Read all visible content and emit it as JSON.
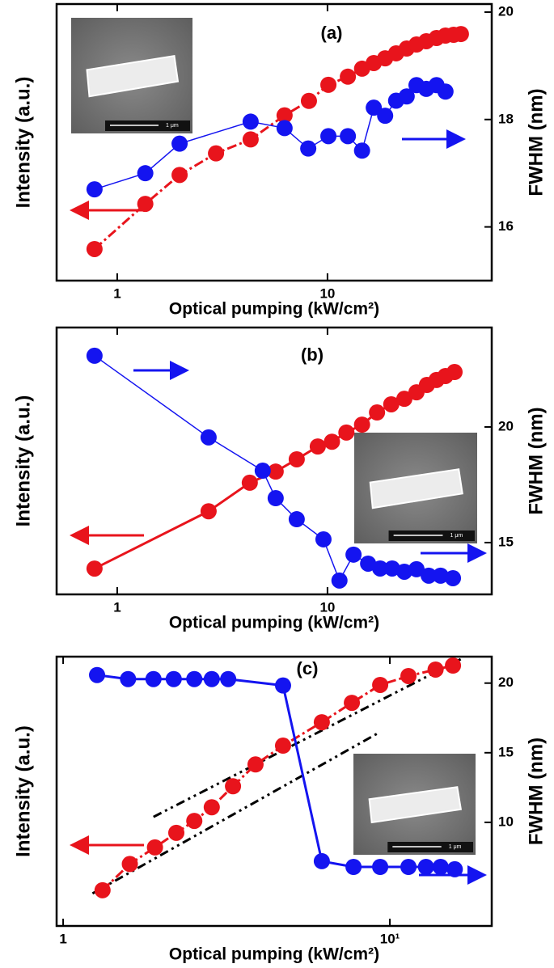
{
  "chart_data": [
    {
      "type": "line",
      "panel_label": "(a)",
      "x_label": "Optical pumping (kW/cm²)",
      "y_label": "Intensity (a.u.)",
      "y2_label": "FWHM (nm)",
      "log_x": true,
      "xlim": [
        0.515,
        60.4
      ],
      "xticks": [
        1,
        10
      ],
      "log_y": true,
      "ylim": [
        1,
        1000
      ],
      "y2lim": [
        15,
        20.15
      ],
      "y2ticks": [
        16,
        18,
        20
      ],
      "inset_scale_label": "1 μm",
      "series": [
        {
          "color": "#e8141c",
          "x": [
            0.78,
            1.36,
            1.98,
            2.95,
            4.31,
            6.25,
            8.16,
            10.1,
            12.5,
            14.6,
            16.6,
            18.8,
            21.2,
            23.8,
            26.5,
            29.5,
            33.0,
            36.4,
            39.8,
            43.1
          ],
          "values": [
            2.2,
            6.8,
            14,
            24,
            34,
            62,
            89,
            133,
            163,
            199,
            229,
            258,
            292,
            329,
            364,
            395,
            428,
            455,
            464,
            473
          ]
        },
        {
          "color": "#1414f0",
          "axis": "y2",
          "x": [
            0.78,
            1.36,
            1.98,
            4.31,
            6.25,
            8.1,
            10.1,
            12.5,
            14.6,
            16.6,
            18.8,
            21.2,
            23.8,
            26.5,
            29.5,
            33.0,
            36.4
          ],
          "values": [
            16.7,
            17.0,
            17.55,
            17.96,
            17.84,
            17.46,
            17.69,
            17.69,
            17.42,
            18.22,
            18.07,
            18.35,
            18.43,
            18.64,
            18.57,
            18.64,
            18.52
          ]
        }
      ]
    },
    {
      "type": "line",
      "panel_label": "(b)",
      "x_label": "Optical pumping (kW/cm²)",
      "y_label": "Intensity (a.u.)",
      "y2_label": "FWHM (nm)",
      "log_x": true,
      "xlim": [
        0.515,
        60.4
      ],
      "xticks": [
        1,
        10
      ],
      "log_y": true,
      "ylim": [
        1,
        1000
      ],
      "y2lim": [
        12.76,
        24.3
      ],
      "y2ticks": [
        15,
        20
      ],
      "inset_scale_label": "1 μm",
      "series": [
        {
          "color": "#e8141c",
          "x": [
            0.78,
            2.72,
            4.27,
            5.67,
            7.14,
            8.99,
            10.5,
            12.3,
            14.6,
            17.2,
            20.1,
            23.2,
            26.5,
            29.7,
            33.0,
            36.4,
            40.2
          ],
          "values": [
            1.95,
            8.6,
            18,
            24,
            33,
            46,
            52,
            66,
            81,
            111,
            137,
            158,
            187,
            226,
            257,
            285,
            316
          ]
        },
        {
          "color": "#1414f0",
          "axis": "y2",
          "x": [
            0.78,
            2.72,
            4.92,
            5.67,
            7.14,
            9.57,
            11.4,
            13.3,
            15.6,
            17.8,
            20.3,
            23.2,
            26.5,
            30.3,
            34.5,
            39.5
          ],
          "values": [
            23.08,
            19.55,
            18.11,
            16.92,
            16.01,
            15.14,
            13.36,
            14.48,
            14.09,
            13.88,
            13.88,
            13.74,
            13.85,
            13.57,
            13.57,
            13.46
          ]
        }
      ]
    },
    {
      "type": "line",
      "panel_label": "(c)",
      "x_label": "Optical pumping (kW/cm²)",
      "y_label": "Intensity (a.u.)",
      "y2_label": "FWHM (nm)",
      "log_x": true,
      "xlim": [
        0.955,
        20.5
      ],
      "xticks": [
        1,
        {
          "value": 10,
          "label": "10¹"
        }
      ],
      "log_y": true,
      "ylim": [
        1,
        1000
      ],
      "y2lim": [
        2.56,
        21.9
      ],
      "y2ticks": [
        10,
        15,
        20
      ],
      "inset_scale_label": "1 μm",
      "series": [
        {
          "color": "#e8141c",
          "x": [
            1.32,
            1.6,
            1.91,
            2.22,
            2.52,
            2.85,
            3.31,
            3.88,
            4.71,
            6.19,
            7.65,
            9.34,
            11.4,
            13.8,
            15.6
          ],
          "values": [
            2.5,
            4.9,
            7.5,
            10.9,
            14.8,
            21,
            36,
            63,
            102,
            186,
            306,
            484,
            608,
            718,
            796
          ]
        },
        {
          "color": "#1414f0",
          "axis": "y2",
          "x": [
            1.27,
            1.58,
            1.89,
            2.18,
            2.52,
            2.85,
            3.2,
            4.71,
            6.19,
            7.74,
            9.34,
            11.4,
            12.9,
            14.3,
            15.8
          ],
          "values": [
            20.58,
            20.29,
            20.29,
            20.29,
            20.29,
            20.29,
            20.29,
            19.83,
            7.21,
            6.8,
            6.8,
            6.8,
            6.8,
            6.8,
            6.63
          ]
        }
      ],
      "fit_lines": [
        {
          "x": [
            1.89,
            16.5
          ],
          "values": [
            16.4,
            940
          ]
        },
        {
          "x": [
            1.23,
            9.34
          ],
          "values": [
            2.3,
            145
          ]
        }
      ]
    }
  ]
}
